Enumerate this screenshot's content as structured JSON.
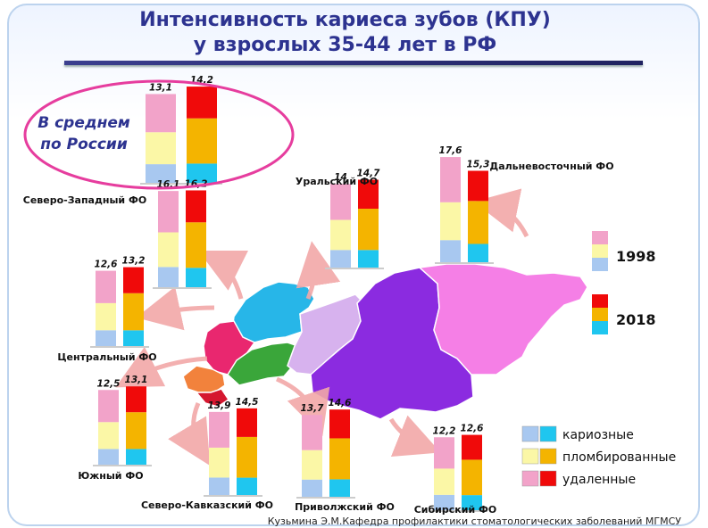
{
  "title_line1": "Интенсивность кариеса зубов (КПУ)",
  "title_line2": "у взрослых 35-44 лет в РФ",
  "footer": "Кузьмина Э.М.Кафедра профилактики стоматологических заболеваний МГМСУ",
  "average_label": [
    "В среднем",
    "по России"
  ],
  "year_legend": [
    "1998",
    "2018"
  ],
  "component_legend": [
    "кариозные",
    "пломбированные",
    "удаленные"
  ],
  "colors": {
    "c1998": [
      "#a8c8f0",
      "#fbf7a6",
      "#f2a3c9"
    ],
    "c2018": [
      "#1fc6ef",
      "#f4b400",
      "#f00a0a"
    ],
    "map": {
      "northwest": "#27b6e8",
      "central": "#e9276f",
      "south": "#f2823c",
      "north_caucasus": "#d5172f",
      "volga": "#3aa63a",
      "ural": "#d7b2ee",
      "siberia": "#8b2be0",
      "fareast": "#f57fe6"
    }
  },
  "chart_data": {
    "type": "bar",
    "subtype": "stacked",
    "components": [
      "кариозные",
      "пломбированные",
      "удаленные"
    ],
    "years": [
      "1998",
      "2018"
    ],
    "regions": [
      {
        "name": "В среднем по России",
        "values": [
          13.1,
          14.2
        ]
      },
      {
        "name": "Северо-Западный ФО",
        "values": [
          16.1,
          16.2
        ]
      },
      {
        "name": "Центральный ФО",
        "values": [
          12.6,
          13.2
        ]
      },
      {
        "name": "Южный ФО",
        "values": [
          12.5,
          13.1
        ]
      },
      {
        "name": "Северо-Кавказский ФО",
        "values": [
          13.9,
          14.5
        ]
      },
      {
        "name": "Приволжский ФО",
        "values": [
          13.7,
          14.6
        ]
      },
      {
        "name": "Уральский ФО",
        "values": [
          14.0,
          14.7
        ]
      },
      {
        "name": "Сибирский ФО",
        "values": [
          12.2,
          12.6
        ]
      },
      {
        "name": "Дальневосточный ФО",
        "values": [
          17.6,
          15.3
        ]
      }
    ]
  }
}
